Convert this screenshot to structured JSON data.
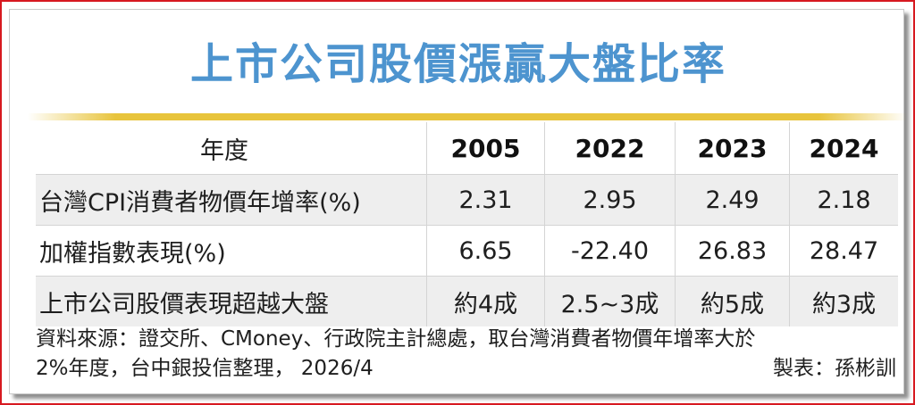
{
  "title": "上市公司股價漲贏大盤比率",
  "table": {
    "corner": "年度",
    "years": [
      "2005",
      "2022",
      "2023",
      "2024"
    ],
    "rows": [
      {
        "label": "台灣CPI消費者物價年增率(%)",
        "values": [
          "2.31",
          "2.95",
          "2.49",
          "2.18"
        ]
      },
      {
        "label": "加權指數表現(%)",
        "values": [
          "6.65",
          "-22.40",
          "26.83",
          "28.47"
        ]
      },
      {
        "label": "上市公司股價表現超越大盤",
        "values": [
          "約4成",
          "2.5~3成",
          "約5成",
          "約3成"
        ]
      }
    ]
  },
  "footer": {
    "source_line1": "資料來源：證交所、CMoney、行政院主計總處，取台灣消費者物價年增率大於",
    "source_line2": "2%年度，台中銀投信整理， 2026/4",
    "credit": "製表：孫彬訓"
  },
  "colors": {
    "title": "#4d94cf",
    "band": "#e8c43c",
    "row_alt": "#eeeeee",
    "frame": "#d71920"
  }
}
